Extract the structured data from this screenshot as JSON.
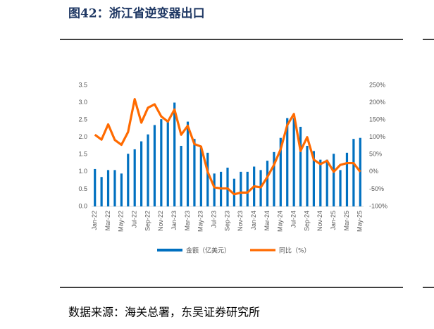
{
  "title": "图42：浙江省逆变器出口",
  "source": "数据来源：海关总署，东吴证券研究所",
  "chart_data": {
    "type": "bar-line",
    "categories": [
      "Jan-22",
      null,
      "Mar-22",
      null,
      "May-22",
      null,
      "Jul-22",
      null,
      "Sep-22",
      null,
      "Nov-22",
      null,
      "Jan-23",
      null,
      "Mar-23",
      null,
      "May-23",
      null,
      "Jul-23",
      null,
      "Sep-23",
      null,
      "Nov-23",
      null,
      "Jan-24",
      null,
      "Mar-24",
      null,
      "May-24",
      null,
      "Jul-24",
      null,
      "Sep-24",
      null,
      "Nov-24",
      null,
      "Jan-25",
      null,
      "Mar-25",
      null,
      "May-25"
    ],
    "series": [
      {
        "name": "金额（亿美元）",
        "color": "#0070c0",
        "type": "bar",
        "values": [
          1.08,
          0.85,
          1.05,
          1.05,
          0.95,
          1.52,
          1.65,
          1.88,
          2.08,
          2.35,
          2.52,
          2.5,
          3.0,
          1.75,
          2.45,
          1.95,
          1.75,
          1.55,
          0.95,
          1.0,
          1.12,
          0.8,
          1.0,
          1.0,
          1.15,
          1.05,
          1.32,
          1.57,
          1.98,
          2.55,
          2.55,
          2.3,
          1.75,
          1.6,
          1.35,
          1.35,
          1.52,
          1.05,
          1.55,
          1.95,
          1.98
        ]
      },
      {
        "name": "同比（%）",
        "color": "#ff6a00",
        "type": "line",
        "axis": "y2",
        "values": [
          107,
          93,
          137,
          92,
          78,
          115,
          210,
          142,
          185,
          195,
          160,
          145,
          180,
          107,
          133,
          80,
          73,
          0,
          -45,
          -48,
          -48,
          -65,
          -60,
          -60,
          -42,
          -45,
          -15,
          20,
          65,
          135,
          167,
          60,
          100,
          35,
          22,
          32,
          0,
          20,
          25,
          25,
          0
        ]
      }
    ],
    "ylim": [
      0,
      3.5
    ],
    "yticks": [
      {
        "value": 0,
        "label": "0.0"
      },
      {
        "value": 0.5,
        "label": "0.5"
      },
      {
        "value": 1,
        "label": "1.0"
      },
      {
        "value": 1.5,
        "label": "1.5"
      },
      {
        "value": 2,
        "label": "2.0"
      },
      {
        "value": 2.5,
        "label": "2.5"
      },
      {
        "value": 3,
        "label": "3.0"
      },
      {
        "value": 3.5,
        "label": "3.5"
      }
    ],
    "y2lim": [
      -100,
      250
    ],
    "y2ticks": [
      {
        "value": -100,
        "label": "-100%"
      },
      {
        "value": -50,
        "label": "-50%"
      },
      {
        "value": 0,
        "label": "0%"
      },
      {
        "value": 50,
        "label": "50%"
      },
      {
        "value": 100,
        "label": "100%"
      },
      {
        "value": 150,
        "label": "150%"
      },
      {
        "value": 200,
        "label": "200%"
      },
      {
        "value": 250,
        "label": "250%"
      }
    ],
    "legend": "bottom"
  }
}
